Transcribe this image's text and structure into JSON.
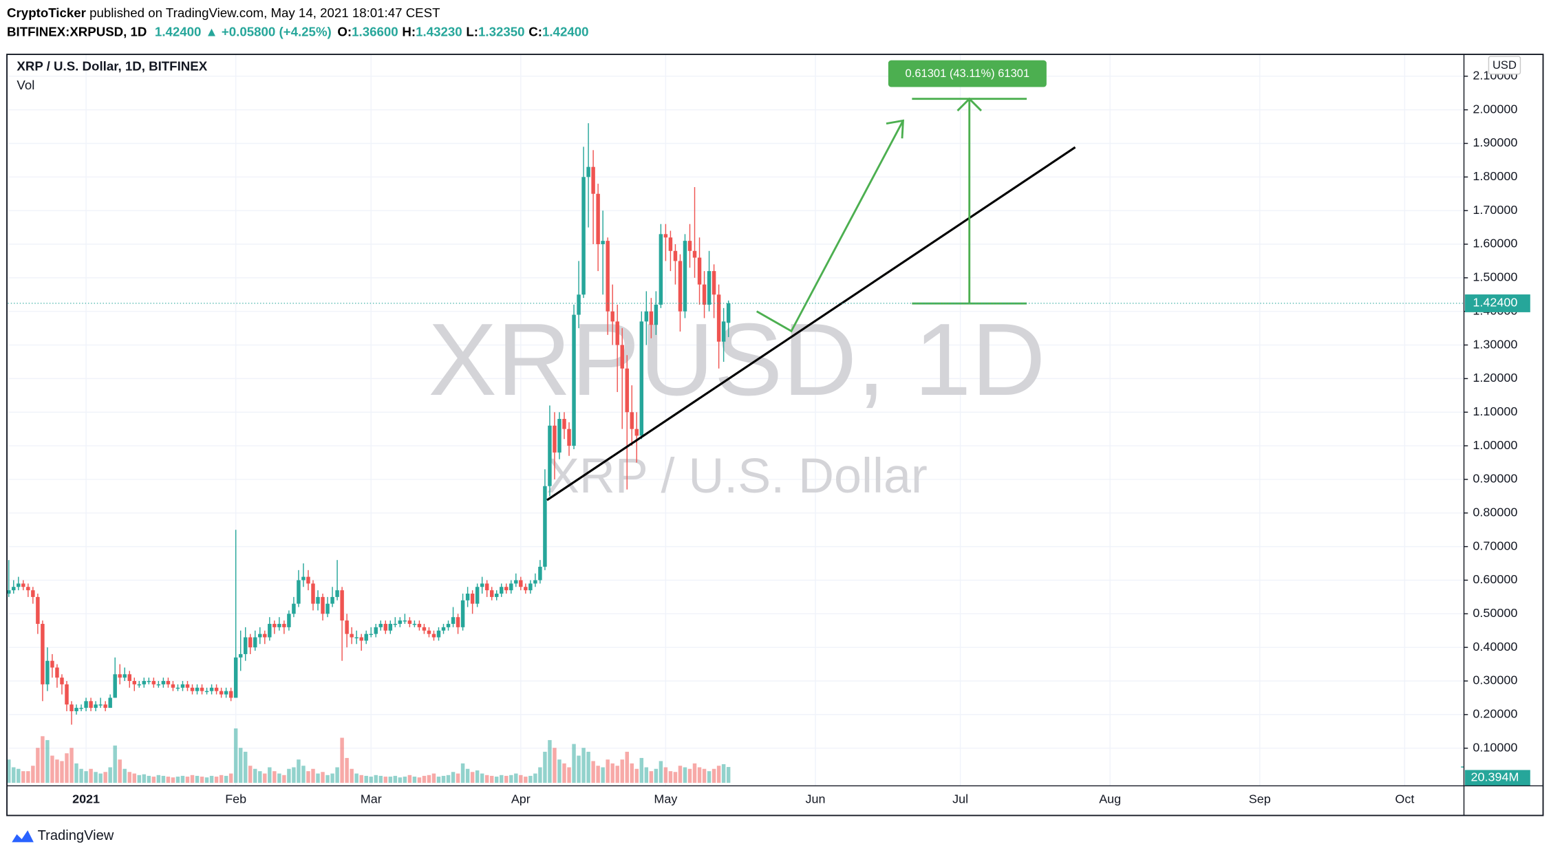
{
  "header": {
    "author": "CryptoTicker",
    "published": "published on TradingView.com, May 14, 2021 18:01:47 CEST",
    "symbol": "BITFINEX:XRPUSD, 1D",
    "price": "1.42400",
    "change": "▲ +0.05800 (+4.25%)",
    "ohlc": [
      {
        "label": "O:",
        "value": "1.36600"
      },
      {
        "label": "H:",
        "value": "1.43230"
      },
      {
        "label": "L:",
        "value": "1.32350"
      },
      {
        "label": "C:",
        "value": "1.42400"
      }
    ]
  },
  "chart_data": {
    "type": "candlestick",
    "title": "XRP / U.S. Dollar, 1D, BITFINEX",
    "volume_title": "Vol",
    "watermark": [
      "XRPUSD, 1D",
      "XRP / U.S. Dollar"
    ],
    "currency": "USD",
    "measure_label": "0.61301 (43.11%) 61301",
    "up_color": "#26a69a",
    "down_color": "#ef5350",
    "open": [
      0.56,
      0.57,
      0.58,
      0.59,
      0.58,
      0.57,
      0.55,
      0.47,
      0.29,
      0.36,
      0.34,
      0.31,
      0.29,
      0.23,
      0.21,
      0.22,
      0.22,
      0.24,
      0.22,
      0.23,
      0.23,
      0.22,
      0.25,
      0.32,
      0.31,
      0.32,
      0.3,
      0.29,
      0.29,
      0.3,
      0.3,
      0.29,
      0.29,
      0.3,
      0.29,
      0.28,
      0.28,
      0.29,
      0.28,
      0.27,
      0.28,
      0.27,
      0.27,
      0.28,
      0.27,
      0.26,
      0.27,
      0.25,
      0.37,
      0.38,
      0.43,
      0.4,
      0.43,
      0.44,
      0.43,
      0.47,
      0.46,
      0.47,
      0.46,
      0.5,
      0.53,
      0.6,
      0.61,
      0.59,
      0.53,
      0.55,
      0.5,
      0.53,
      0.55,
      0.57,
      0.48,
      0.44,
      0.43,
      0.43,
      0.42,
      0.44,
      0.44,
      0.46,
      0.47,
      0.45,
      0.47,
      0.47,
      0.48,
      0.48,
      0.47,
      0.47,
      0.46,
      0.45,
      0.44,
      0.43,
      0.45,
      0.46,
      0.47,
      0.49,
      0.46,
      0.54,
      0.56,
      0.53,
      0.58,
      0.59,
      0.57,
      0.55,
      0.56,
      0.58,
      0.57,
      0.59,
      0.6,
      0.58,
      0.57,
      0.59,
      0.6,
      0.64,
      0.88,
      1.06,
      0.98,
      1.08,
      1.05,
      1.0,
      1.39,
      1.45,
      1.8,
      1.83,
      1.75,
      1.6,
      1.61,
      1.4,
      1.37,
      1.3,
      1.23,
      1.1,
      1.05,
      1.03,
      1.37,
      1.4,
      1.36,
      1.42,
      1.63,
      1.62,
      1.58,
      1.55,
      1.4,
      1.61,
      1.58,
      1.56,
      1.48,
      1.42,
      1.52,
      1.45,
      1.31,
      1.366
    ],
    "high": [
      0.66,
      0.6,
      0.61,
      0.6,
      0.59,
      0.58,
      0.56,
      0.48,
      0.4,
      0.38,
      0.35,
      0.32,
      0.3,
      0.24,
      0.23,
      0.23,
      0.25,
      0.25,
      0.24,
      0.25,
      0.24,
      0.26,
      0.37,
      0.35,
      0.34,
      0.33,
      0.31,
      0.3,
      0.31,
      0.31,
      0.31,
      0.3,
      0.31,
      0.31,
      0.3,
      0.29,
      0.3,
      0.3,
      0.29,
      0.29,
      0.29,
      0.28,
      0.29,
      0.29,
      0.28,
      0.28,
      0.28,
      0.75,
      0.45,
      0.46,
      0.44,
      0.45,
      0.46,
      0.45,
      0.49,
      0.48,
      0.49,
      0.48,
      0.51,
      0.55,
      0.63,
      0.65,
      0.63,
      0.6,
      0.57,
      0.56,
      0.55,
      0.58,
      0.66,
      0.58,
      0.5,
      0.46,
      0.45,
      0.44,
      0.45,
      0.46,
      0.47,
      0.48,
      0.48,
      0.48,
      0.49,
      0.49,
      0.5,
      0.49,
      0.48,
      0.48,
      0.47,
      0.46,
      0.45,
      0.46,
      0.47,
      0.48,
      0.52,
      0.5,
      0.56,
      0.58,
      0.57,
      0.59,
      0.61,
      0.6,
      0.58,
      0.57,
      0.59,
      0.59,
      0.6,
      0.62,
      0.61,
      0.59,
      0.6,
      0.62,
      0.66,
      0.93,
      1.12,
      1.1,
      1.1,
      1.1,
      1.07,
      1.42,
      1.55,
      1.89,
      1.96,
      1.88,
      1.78,
      1.7,
      1.62,
      1.48,
      1.42,
      1.35,
      1.27,
      1.18,
      1.1,
      1.4,
      1.46,
      1.44,
      1.46,
      1.66,
      1.66,
      1.64,
      1.6,
      1.57,
      1.63,
      1.66,
      1.77,
      1.62,
      1.52,
      1.58,
      1.54,
      1.48,
      1.41,
      1.4323
    ],
    "low": [
      0.55,
      0.56,
      0.57,
      0.57,
      0.55,
      0.53,
      0.44,
      0.24,
      0.27,
      0.31,
      0.28,
      0.26,
      0.21,
      0.17,
      0.2,
      0.21,
      0.21,
      0.21,
      0.21,
      0.22,
      0.21,
      0.22,
      0.25,
      0.29,
      0.3,
      0.28,
      0.27,
      0.28,
      0.28,
      0.29,
      0.28,
      0.28,
      0.28,
      0.28,
      0.27,
      0.27,
      0.27,
      0.27,
      0.26,
      0.26,
      0.26,
      0.26,
      0.26,
      0.26,
      0.25,
      0.25,
      0.24,
      0.25,
      0.33,
      0.36,
      0.38,
      0.39,
      0.41,
      0.41,
      0.42,
      0.44,
      0.45,
      0.44,
      0.45,
      0.49,
      0.52,
      0.58,
      0.57,
      0.51,
      0.51,
      0.48,
      0.49,
      0.52,
      0.54,
      0.36,
      0.4,
      0.41,
      0.41,
      0.39,
      0.41,
      0.43,
      0.43,
      0.45,
      0.44,
      0.44,
      0.46,
      0.46,
      0.47,
      0.46,
      0.46,
      0.45,
      0.44,
      0.43,
      0.42,
      0.42,
      0.44,
      0.45,
      0.46,
      0.44,
      0.45,
      0.52,
      0.5,
      0.52,
      0.56,
      0.55,
      0.54,
      0.54,
      0.55,
      0.56,
      0.56,
      0.58,
      0.57,
      0.56,
      0.56,
      0.58,
      0.59,
      0.63,
      0.85,
      0.9,
      0.96,
      1.02,
      0.97,
      0.99,
      1.35,
      1.44,
      1.65,
      1.6,
      1.52,
      1.45,
      1.33,
      1.3,
      1.16,
      1.05,
      0.87,
      1.0,
      0.95,
      1.02,
      1.3,
      1.32,
      1.33,
      1.41,
      1.55,
      1.52,
      1.48,
      1.34,
      1.38,
      1.53,
      1.5,
      1.42,
      1.38,
      1.4,
      1.38,
      1.23,
      1.25,
      1.3235
    ],
    "close": [
      0.57,
      0.58,
      0.59,
      0.58,
      0.57,
      0.55,
      0.47,
      0.29,
      0.36,
      0.34,
      0.31,
      0.29,
      0.23,
      0.21,
      0.22,
      0.22,
      0.24,
      0.22,
      0.23,
      0.23,
      0.22,
      0.25,
      0.32,
      0.31,
      0.32,
      0.3,
      0.29,
      0.29,
      0.3,
      0.3,
      0.29,
      0.29,
      0.3,
      0.29,
      0.28,
      0.28,
      0.29,
      0.28,
      0.27,
      0.28,
      0.27,
      0.27,
      0.28,
      0.27,
      0.26,
      0.27,
      0.25,
      0.37,
      0.38,
      0.43,
      0.4,
      0.43,
      0.44,
      0.43,
      0.47,
      0.46,
      0.47,
      0.46,
      0.5,
      0.53,
      0.6,
      0.61,
      0.59,
      0.53,
      0.55,
      0.5,
      0.53,
      0.55,
      0.57,
      0.48,
      0.44,
      0.43,
      0.43,
      0.42,
      0.44,
      0.44,
      0.46,
      0.47,
      0.45,
      0.47,
      0.47,
      0.48,
      0.48,
      0.47,
      0.47,
      0.46,
      0.45,
      0.44,
      0.43,
      0.45,
      0.46,
      0.47,
      0.49,
      0.46,
      0.54,
      0.56,
      0.53,
      0.58,
      0.59,
      0.57,
      0.55,
      0.56,
      0.58,
      0.57,
      0.59,
      0.6,
      0.58,
      0.57,
      0.59,
      0.6,
      0.64,
      0.88,
      1.06,
      0.98,
      1.08,
      1.05,
      1.0,
      1.39,
      1.45,
      1.8,
      1.83,
      1.75,
      1.6,
      1.61,
      1.4,
      1.37,
      1.3,
      1.23,
      1.1,
      1.05,
      1.03,
      1.37,
      1.4,
      1.36,
      1.42,
      1.63,
      1.62,
      1.58,
      1.55,
      1.4,
      1.61,
      1.58,
      1.56,
      1.48,
      1.42,
      1.52,
      1.45,
      1.31,
      1.37,
      1.424
    ],
    "volume": [
      30,
      20,
      18,
      15,
      15,
      22,
      45,
      60,
      55,
      35,
      30,
      28,
      38,
      45,
      25,
      18,
      15,
      18,
      14,
      12,
      14,
      20,
      48,
      30,
      18,
      14,
      12,
      10,
      11,
      9,
      8,
      10,
      9,
      8,
      7,
      8,
      9,
      8,
      10,
      9,
      8,
      7,
      9,
      8,
      10,
      9,
      12,
      70,
      45,
      40,
      22,
      18,
      15,
      12,
      20,
      15,
      12,
      10,
      18,
      20,
      30,
      22,
      15,
      18,
      12,
      14,
      10,
      12,
      20,
      58,
      32,
      18,
      12,
      10,
      9,
      8,
      10,
      9,
      8,
      8,
      9,
      7,
      8,
      10,
      8,
      7,
      9,
      10,
      12,
      8,
      9,
      10,
      14,
      12,
      25,
      18,
      14,
      16,
      12,
      10,
      9,
      8,
      10,
      9,
      10,
      12,
      10,
      8,
      9,
      12,
      20,
      40,
      55,
      45,
      30,
      25,
      20,
      50,
      35,
      45,
      40,
      28,
      22,
      20,
      30,
      25,
      22,
      30,
      40,
      25,
      18,
      32,
      20,
      15,
      18,
      28,
      20,
      15,
      14,
      22,
      20,
      18,
      25,
      20,
      18,
      15,
      18,
      22,
      24,
      20.394
    ],
    "xlim": [
      -0.18,
      301.27
    ],
    "xticks": [
      {
        "value": 16,
        "label": "2021"
      },
      {
        "value": 47,
        "label": "Feb"
      },
      {
        "value": 75,
        "label": "Mar"
      },
      {
        "value": 106,
        "label": "Apr"
      },
      {
        "value": 136,
        "label": "May"
      },
      {
        "value": 167,
        "label": "Jun"
      },
      {
        "value": 197,
        "label": "Jul"
      },
      {
        "value": 228,
        "label": "Aug"
      },
      {
        "value": 259,
        "label": "Sep"
      },
      {
        "value": 289,
        "label": "Oct"
      }
    ],
    "ylim": [
      -0.012,
      2.165
    ],
    "yticks": [
      {
        "value": 0.1,
        "label": "0.10000"
      },
      {
        "value": 0.2,
        "label": "0.20000"
      },
      {
        "value": 0.3,
        "label": "0.30000"
      },
      {
        "value": 0.4,
        "label": "0.40000"
      },
      {
        "value": 0.5,
        "label": "0.50000"
      },
      {
        "value": 0.6,
        "label": "0.60000"
      },
      {
        "value": 0.7,
        "label": "0.70000"
      },
      {
        "value": 0.8,
        "label": "0.80000"
      },
      {
        "value": 0.9,
        "label": "0.90000"
      },
      {
        "value": 1.0,
        "label": "1.00000"
      },
      {
        "value": 1.1,
        "label": "1.10000"
      },
      {
        "value": 1.2,
        "label": "1.20000"
      },
      {
        "value": 1.3,
        "label": "1.30000"
      },
      {
        "value": 1.4,
        "label": "1.40000"
      },
      {
        "value": 1.5,
        "label": "1.50000"
      },
      {
        "value": 1.6,
        "label": "1.60000"
      },
      {
        "value": 1.7,
        "label": "1.70000"
      },
      {
        "value": 1.8,
        "label": "1.80000"
      },
      {
        "value": 1.9,
        "label": "1.90000"
      },
      {
        "value": 2.0,
        "label": "2.00000"
      },
      {
        "value": 2.1,
        "label": "2.10000"
      }
    ],
    "y2lim": [
      0,
      941
    ],
    "grid": true,
    "last_price": {
      "value": 1.424,
      "label": "1.42400"
    },
    "last_volume": {
      "value": 20.394,
      "label": "20.394M"
    }
  },
  "footer": {
    "brand": "TradingView"
  }
}
